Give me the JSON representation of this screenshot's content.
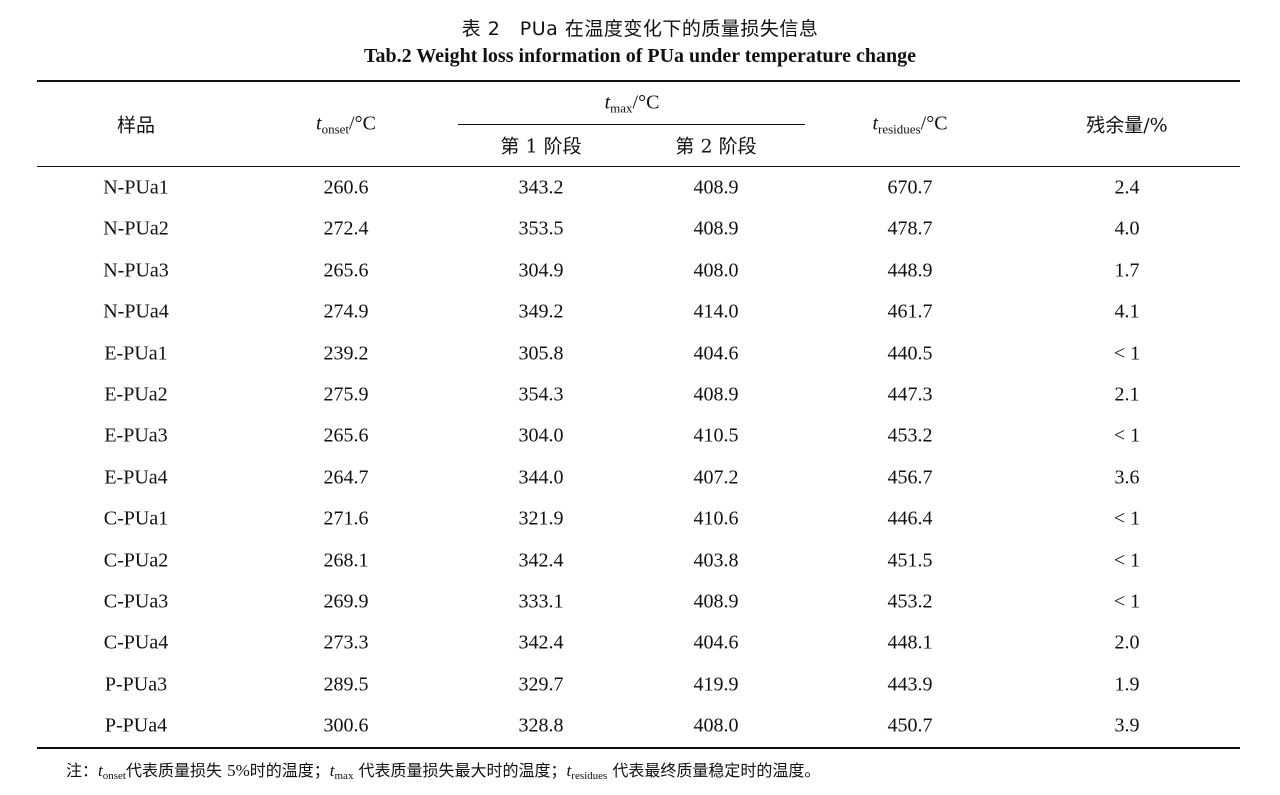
{
  "caption": {
    "cn": "表 2　PUa 在温度变化下的质量损失信息",
    "en": "Tab.2 Weight loss information of PUa under temperature change"
  },
  "headers": {
    "sample": "样品",
    "t_onset_var": "t",
    "t_onset_sub": "onset",
    "t_onset_unit": "/°C",
    "t_max_var": "t",
    "t_max_sub": "max",
    "t_max_unit": "/°C",
    "stage1": "第 1 阶段",
    "stage2": "第 2 阶段",
    "t_res_var": "t",
    "t_res_sub": "residues",
    "t_res_unit": "/°C",
    "residue": "残余量/%"
  },
  "rows": [
    [
      "N-PUa1",
      "260.6",
      "343.2",
      "408.9",
      "670.7",
      "2.4"
    ],
    [
      "N-PUa2",
      "272.4",
      "353.5",
      "408.9",
      "478.7",
      "4.0"
    ],
    [
      "N-PUa3",
      "265.6",
      "304.9",
      "408.0",
      "448.9",
      "1.7"
    ],
    [
      "N-PUa4",
      "274.9",
      "349.2",
      "414.0",
      "461.7",
      "4.1"
    ],
    [
      "E-PUa1",
      "239.2",
      "305.8",
      "404.6",
      "440.5",
      "< 1"
    ],
    [
      "E-PUa2",
      "275.9",
      "354.3",
      "408.9",
      "447.3",
      "2.1"
    ],
    [
      "E-PUa3",
      "265.6",
      "304.0",
      "410.5",
      "453.2",
      "< 1"
    ],
    [
      "E-PUa4",
      "264.7",
      "344.0",
      "407.2",
      "456.7",
      "3.6"
    ],
    [
      "C-PUa1",
      "271.6",
      "321.9",
      "410.6",
      "446.4",
      "< 1"
    ],
    [
      "C-PUa2",
      "268.1",
      "342.4",
      "403.8",
      "451.5",
      "< 1"
    ],
    [
      "C-PUa3",
      "269.9",
      "333.1",
      "408.9",
      "453.2",
      "< 1"
    ],
    [
      "C-PUa4",
      "273.3",
      "342.4",
      "404.6",
      "448.1",
      "2.0"
    ],
    [
      "P-PUa3",
      "289.5",
      "329.7",
      "419.9",
      "443.9",
      "1.9"
    ],
    [
      "P-PUa4",
      "300.6",
      "328.8",
      "408.0",
      "450.7",
      "3.9"
    ]
  ],
  "note": {
    "prefix": "注：",
    "v1": "t",
    "s1": "onset",
    "d1": "代表质量损失 ",
    "pct": "5%",
    "d1b": "时的温度；",
    "v2": "t",
    "s2": "max",
    "d2": " 代表质量损失最大时的温度；",
    "v3": "t",
    "s3": "residues",
    "d3": " 代表最终质量稳定时的温度。"
  }
}
